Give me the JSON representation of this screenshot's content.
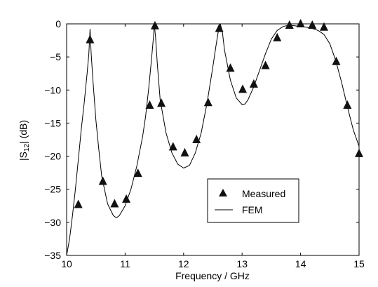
{
  "chart_data": {
    "type": "line",
    "xlabel": "Frequency / GHz",
    "ylabel_main": "|S",
    "ylabel_sub": "12",
    "ylabel_tail": "| (dB)",
    "xlim": [
      10,
      15
    ],
    "ylim": [
      -35,
      0
    ],
    "xticks": [
      10,
      11,
      12,
      13,
      14,
      15
    ],
    "yticks": [
      0,
      -5,
      -10,
      -15,
      -20,
      -25,
      -30,
      -35
    ],
    "xtick_labels": [
      "10",
      "11",
      "12",
      "13",
      "14",
      "15"
    ],
    "ytick_labels": [
      "0",
      "−5",
      "−10",
      "−15",
      "−20",
      "−25",
      "−30",
      "−35"
    ],
    "grid": false,
    "legend_position": "lower-right",
    "series": [
      {
        "name": "Measured",
        "marker": "triangle",
        "x": [
          10.2,
          10.4,
          10.62,
          10.82,
          11.02,
          11.22,
          11.42,
          11.51,
          11.62,
          11.82,
          12.02,
          12.22,
          12.42,
          12.61,
          12.8,
          13.01,
          13.2,
          13.4,
          13.6,
          13.81,
          14.0,
          14.2,
          14.4,
          14.61,
          14.8,
          15.0
        ],
        "y": [
          -27.2,
          -2.3,
          -23.7,
          -27.1,
          -26.4,
          -22.5,
          -12.2,
          -0.2,
          -11.9,
          -18.5,
          -19.4,
          -17.4,
          -11.8,
          -0.6,
          -6.6,
          -9.8,
          -9.0,
          -6.2,
          -2.0,
          -0.1,
          0.1,
          -0.1,
          -0.4,
          -5.6,
          -12.2,
          -19.5
        ]
      },
      {
        "name": "FEM",
        "style": "solid",
        "x": [
          10.0,
          10.05,
          10.1,
          10.15,
          10.2,
          10.25,
          10.3,
          10.35,
          10.38,
          10.4,
          10.42,
          10.45,
          10.5,
          10.55,
          10.6,
          10.7,
          10.8,
          10.85,
          10.9,
          11.0,
          11.1,
          11.2,
          11.3,
          11.35,
          11.4,
          11.45,
          11.48,
          11.5,
          11.52,
          11.55,
          11.6,
          11.7,
          11.8,
          11.9,
          12.0,
          12.1,
          12.2,
          12.3,
          12.4,
          12.5,
          12.55,
          12.6,
          12.63,
          12.66,
          12.7,
          12.8,
          12.9,
          13.0,
          13.05,
          13.1,
          13.2,
          13.3,
          13.4,
          13.5,
          13.6,
          13.7,
          13.8,
          13.9,
          14.0,
          14.1,
          14.2,
          14.3,
          14.4,
          14.5,
          14.6,
          14.7,
          14.8,
          14.9,
          15.0
        ],
        "y": [
          -35.0,
          -32.5,
          -29.0,
          -25.0,
          -20.5,
          -16.0,
          -12.0,
          -7.5,
          -4.5,
          -0.8,
          -4.5,
          -8.5,
          -14.5,
          -19.0,
          -23.0,
          -27.2,
          -29.0,
          -29.3,
          -29.0,
          -27.5,
          -25.0,
          -21.5,
          -17.0,
          -14.0,
          -10.0,
          -5.5,
          -2.5,
          -0.2,
          -2.0,
          -6.0,
          -11.5,
          -16.5,
          -19.5,
          -21.2,
          -21.8,
          -21.4,
          -19.5,
          -16.5,
          -12.0,
          -6.5,
          -3.5,
          -0.8,
          -0.1,
          -1.0,
          -4.0,
          -8.5,
          -11.2,
          -12.2,
          -12.1,
          -11.5,
          -9.5,
          -7.0,
          -4.5,
          -2.3,
          -1.0,
          -0.4,
          -0.2,
          -0.3,
          -0.4,
          -0.5,
          -0.7,
          -1.0,
          -1.6,
          -3.0,
          -5.5,
          -8.8,
          -12.5,
          -16.0,
          -18.5
        ]
      }
    ]
  }
}
